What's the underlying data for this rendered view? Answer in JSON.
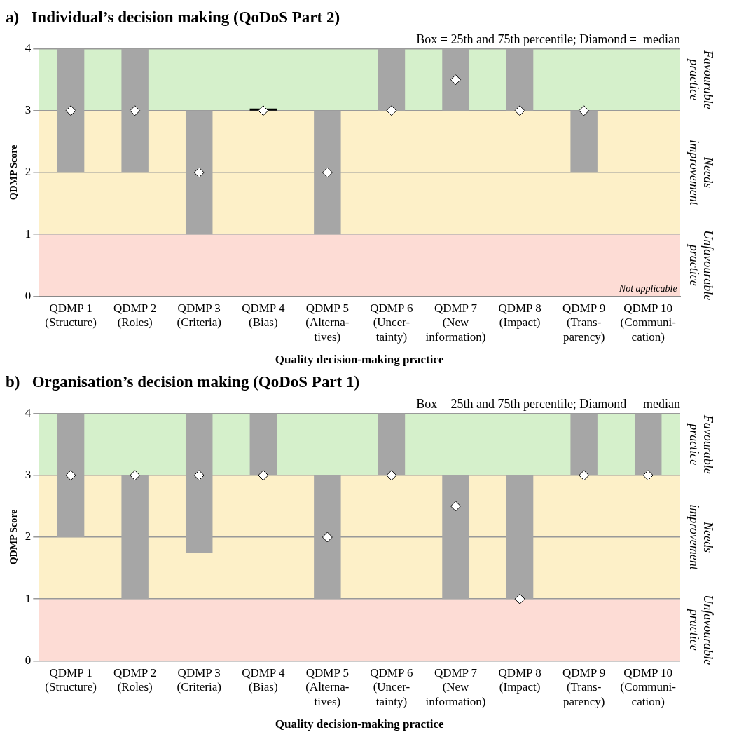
{
  "chart_data": [
    {
      "type": "bar",
      "title": "a)   Individual’s decision making (QoDoS Part 2)",
      "xlabel": "Quality decision-making practice",
      "ylabel": "QDMP Score",
      "categories": [
        "QDMP 1\n(Structure)",
        "QDMP 2\n(Roles)",
        "QDMP 3\n(Criteria)",
        "QDMP 4\n(Bias)",
        "QDMP 5\n(Alterna-\ntives)",
        "QDMP 6\n(Uncer-\ntainty)",
        "QDMP 7\n(New\ninformation)",
        "QDMP 8\n(Impact)",
        "QDMP 9\n(Trans-\nparency)",
        "QDMP 10\n(Communi-\ncation)"
      ],
      "ylim": [
        0,
        4
      ],
      "yticks": [
        0,
        1,
        2,
        3,
        4
      ],
      "grid": "y",
      "bands": [
        {
          "axis": "y",
          "from": 3,
          "to": 4,
          "label": "Favourable practice",
          "color": "#d5f0cb"
        },
        {
          "axis": "y",
          "from": 1,
          "to": 3,
          "label": "Needs improvement",
          "color": "#fdf0c8"
        },
        {
          "axis": "y",
          "from": 0,
          "to": 1,
          "label": "Unfavourable practice",
          "color": "#fddcd5"
        }
      ],
      "annotations": [
        "Box = 25th and 75th percentile; Diamond =  median",
        {
          "text": "Not applicable",
          "x": "QDMP 10\n(Communi-\ncation)",
          "y": 0
        }
      ],
      "series": [
        {
          "colors": [
            "#a6a6a6",
            "#a6a6a6",
            "#a6a6a6",
            "#000000",
            "#a6a6a6",
            "#a6a6a6",
            "#a6a6a6",
            "#a6a6a6",
            "#a6a6a6",
            "#a6a6a6"
          ],
          "base": [
            2,
            2,
            1,
            3,
            1,
            3,
            3,
            3,
            2,
            null
          ],
          "values": [
            2,
            2,
            2,
            0,
            2,
            1,
            1,
            1,
            1,
            null
          ]
        },
        {
          "type": "scatter",
          "color": "#ffffff",
          "marker": "diamond",
          "x": [
            "QDMP 1\n(Structure)",
            "QDMP 2\n(Roles)",
            "QDMP 3\n(Criteria)",
            "QDMP 4\n(Bias)",
            "QDMP 5\n(Alterna-\ntives)",
            "QDMP 6\n(Uncer-\ntainty)",
            "QDMP 7\n(New\ninformation)",
            "QDMP 8\n(Impact)",
            "QDMP 9\n(Trans-\nparency)",
            "QDMP 10\n(Communi-\ncation)"
          ],
          "values": [
            3,
            3,
            2,
            3,
            2,
            3,
            3.5,
            3,
            3,
            null
          ]
        }
      ]
    },
    {
      "type": "bar",
      "title": "b)   Organisation’s decision making (QoDoS Part 1)",
      "xlabel": "Quality decision-making practice",
      "ylabel": "QDMP Score",
      "categories": [
        "QDMP 1\n(Structure)",
        "QDMP 2\n(Roles)",
        "QDMP 3\n(Criteria)",
        "QDMP 4\n(Bias)",
        "QDMP 5\n(Alterna-\ntives)",
        "QDMP 6\n(Uncer-\ntainty)",
        "QDMP 7\n(New\ninformation)",
        "QDMP 8\n(Impact)",
        "QDMP 9\n(Trans-\nparency)",
        "QDMP 10\n(Communi-\ncation)"
      ],
      "ylim": [
        0,
        4
      ],
      "yticks": [
        0,
        1,
        2,
        3,
        4
      ],
      "grid": "y",
      "bands": [
        {
          "axis": "y",
          "from": 3,
          "to": 4,
          "label": "Favourable practice",
          "color": "#d5f0cb"
        },
        {
          "axis": "y",
          "from": 1,
          "to": 3,
          "label": "Needs improvement",
          "color": "#fdf0c8"
        },
        {
          "axis": "y",
          "from": 0,
          "to": 1,
          "label": "Unfavourable practice",
          "color": "#fddcd5"
        }
      ],
      "annotations": [
        "Box = 25th and 75th percentile; Diamond =  median"
      ],
      "series": [
        {
          "color": "#a6a6a6",
          "base": [
            2,
            1,
            1.75,
            3,
            1,
            3,
            1,
            1,
            3,
            3
          ],
          "values": [
            2,
            2,
            2.25,
            1,
            2,
            1,
            2,
            2,
            1,
            1
          ]
        },
        {
          "type": "scatter",
          "color": "#ffffff",
          "marker": "diamond",
          "x": [
            "QDMP 1\n(Structure)",
            "QDMP 2\n(Roles)",
            "QDMP 3\n(Criteria)",
            "QDMP 4\n(Bias)",
            "QDMP 5\n(Alterna-\ntives)",
            "QDMP 6\n(Uncer-\ntainty)",
            "QDMP 7\n(New\ninformation)",
            "QDMP 8\n(Impact)",
            "QDMP 9\n(Trans-\nparency)",
            "QDMP 10\n(Communi-\ncation)"
          ],
          "values": [
            3,
            3,
            3,
            3,
            2,
            3,
            2.5,
            1,
            3,
            3
          ]
        }
      ]
    }
  ]
}
